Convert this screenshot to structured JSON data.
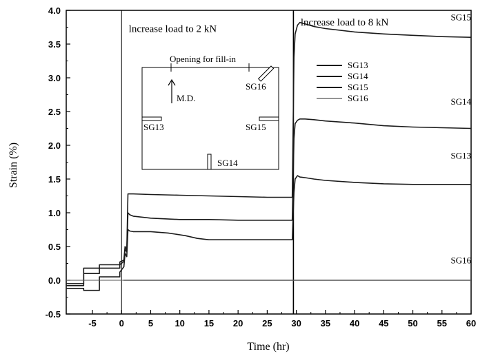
{
  "chart_data": {
    "type": "line",
    "xlabel": "Time (hr)",
    "ylabel": "Strain (%)",
    "xlim": [
      -9.5,
      60
    ],
    "ylim": [
      -0.5,
      4.0
    ],
    "x_ticks": [
      -5,
      0,
      5,
      10,
      15,
      20,
      25,
      30,
      35,
      40,
      45,
      50,
      55,
      60
    ],
    "y_ticks": [
      -0.5,
      0.0,
      0.5,
      1.0,
      1.5,
      2.0,
      2.5,
      3.0,
      3.5,
      4.0
    ],
    "x_tick_labels": [
      "-5",
      "0",
      "5",
      "10",
      "15",
      "20",
      "25",
      "30",
      "35",
      "40",
      "45",
      "50",
      "55",
      "60"
    ],
    "y_tick_labels": [
      "-0.5",
      "0.0",
      "0.5",
      "1.0",
      "1.5",
      "2.0",
      "2.5",
      "3.0",
      "3.5",
      "4.0"
    ],
    "vlines": [
      0,
      29.5
    ],
    "annotations": [
      {
        "text": "lncrease load to 2 kN",
        "x": 1.0,
        "y": 3.8
      },
      {
        "text": "lncrease load to 8 kN",
        "x": 30.5,
        "y": 3.9
      }
    ],
    "series_labels": [
      {
        "text": "SG15",
        "x": 56.5,
        "y": 3.85
      },
      {
        "text": "SG14",
        "x": 56.5,
        "y": 2.6
      },
      {
        "text": "SG13",
        "x": 56.5,
        "y": 1.8
      },
      {
        "text": "SG16",
        "x": 56.5,
        "y": 0.25
      }
    ],
    "legend": {
      "position": "upper-center",
      "entries": [
        "SG13",
        "SG14",
        "SG15",
        "SG16"
      ]
    },
    "series": [
      {
        "name": "SG15",
        "color": "#1a1a1a",
        "x": [
          -9.5,
          -6.5,
          -6.5,
          -3.8,
          -3.8,
          -0.3,
          -0.3,
          0.4,
          0.6,
          0.9,
          1.1,
          1.4,
          2,
          5,
          10,
          15,
          20,
          25,
          29.3,
          29.6,
          29.8,
          30.2,
          30.6,
          31.5,
          33,
          35,
          40,
          45,
          50,
          55,
          60
        ],
        "y": [
          -0.05,
          -0.05,
          0.18,
          0.18,
          0.23,
          0.23,
          0.27,
          0.3,
          0.5,
          0.45,
          1.28,
          1.28,
          1.28,
          1.27,
          1.26,
          1.25,
          1.24,
          1.23,
          1.23,
          3.3,
          3.65,
          3.78,
          3.82,
          3.8,
          3.76,
          3.73,
          3.68,
          3.65,
          3.63,
          3.61,
          3.6
        ]
      },
      {
        "name": "SG14",
        "color": "#1a1a1a",
        "x": [
          -9.5,
          -6.5,
          -6.5,
          -3.8,
          -3.8,
          -0.3,
          -0.3,
          0.4,
          0.6,
          0.9,
          1.1,
          1.4,
          2,
          5,
          10,
          15,
          20,
          25,
          29.3,
          29.6,
          29.8,
          30.2,
          30.6,
          31.5,
          33,
          35,
          40,
          45,
          50,
          55,
          60
        ],
        "y": [
          -0.08,
          -0.08,
          0.1,
          0.1,
          0.18,
          0.18,
          0.23,
          0.28,
          0.46,
          0.42,
          1.0,
          0.97,
          0.95,
          0.92,
          0.9,
          0.9,
          0.89,
          0.89,
          0.89,
          2.1,
          2.32,
          2.37,
          2.39,
          2.39,
          2.38,
          2.36,
          2.33,
          2.29,
          2.27,
          2.26,
          2.25
        ]
      },
      {
        "name": "SG13",
        "color": "#1a1a1a",
        "x": [
          -9.5,
          -6.5,
          -6.5,
          -3.8,
          -3.8,
          -0.3,
          -0.3,
          0.4,
          0.6,
          0.9,
          1.1,
          1.4,
          2,
          5,
          8,
          11,
          13,
          15,
          17,
          20,
          25,
          29.3,
          29.6,
          29.8,
          30.2,
          30.6,
          31.5,
          33,
          35,
          40,
          45,
          50,
          55,
          60
        ],
        "y": [
          -0.12,
          -0.12,
          -0.15,
          -0.15,
          0.05,
          0.05,
          0.12,
          0.2,
          0.4,
          0.35,
          0.75,
          0.73,
          0.72,
          0.72,
          0.7,
          0.66,
          0.62,
          0.6,
          0.6,
          0.6,
          0.6,
          0.6,
          1.3,
          1.5,
          1.55,
          1.53,
          1.52,
          1.5,
          1.48,
          1.45,
          1.43,
          1.42,
          1.42,
          1.42
        ]
      },
      {
        "name": "SG16",
        "color": "#555555",
        "x": [
          0.3,
          5,
          10,
          20,
          30,
          40,
          50,
          60
        ],
        "y": [
          0.0,
          0.0,
          0.0,
          0.0,
          0.0,
          0.0,
          0.0,
          0.0
        ]
      }
    ]
  },
  "inset": {
    "opening_label": "Opening for fill-in",
    "md_label": "M.D.",
    "gauge_labels": {
      "sg13": "SG13",
      "sg14": "SG14",
      "sg15": "SG15",
      "sg16": "SG16"
    }
  }
}
